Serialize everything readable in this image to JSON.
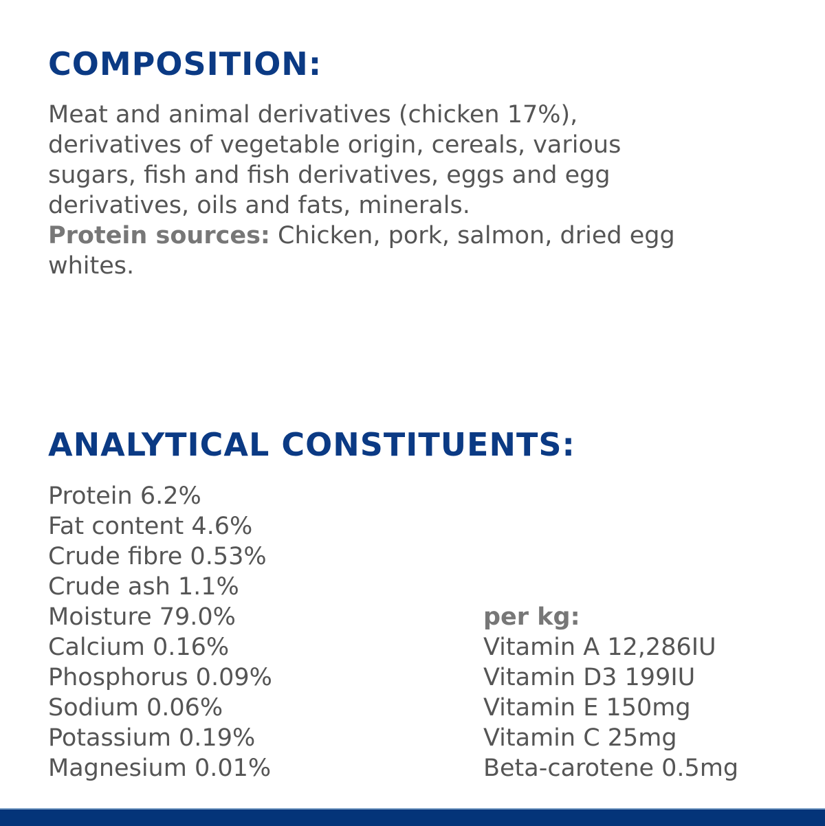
{
  "composition": {
    "heading": "COMPOSITION:",
    "lines": [
      "Meat and animal derivatives (chicken 17%),",
      "derivatives of vegetable origin, cereals, various",
      "sugars, fish and fish derivatives, eggs and egg",
      "derivatives, oils and fats, minerals."
    ],
    "protein_label": "Protein sources:",
    "protein_line1": " Chicken, pork, salmon, dried egg",
    "protein_line2": "whites."
  },
  "analytical": {
    "heading": "ANALYTICAL CONSTITUENTS:",
    "items": [
      "Protein 6.2%",
      "Fat content 4.6%",
      "Crude fibre 0.53%",
      "Crude ash 1.1%",
      "Moisture 79.0%",
      "Calcium 0.16%",
      "Phosphorus 0.09%",
      "Sodium 0.06%",
      "Potassium 0.19%",
      "Magnesium 0.01%"
    ],
    "per_kg_label": "per kg:",
    "per_kg_items": [
      "Vitamin A 12,286IU",
      "Vitamin D3 199IU",
      "Vitamin E 150mg",
      "Vitamin C 25mg",
      "Beta-carotene 0.5mg"
    ]
  },
  "colors": {
    "heading": "#0b3a84",
    "text": "#555555",
    "footer_bar": "#043479"
  }
}
